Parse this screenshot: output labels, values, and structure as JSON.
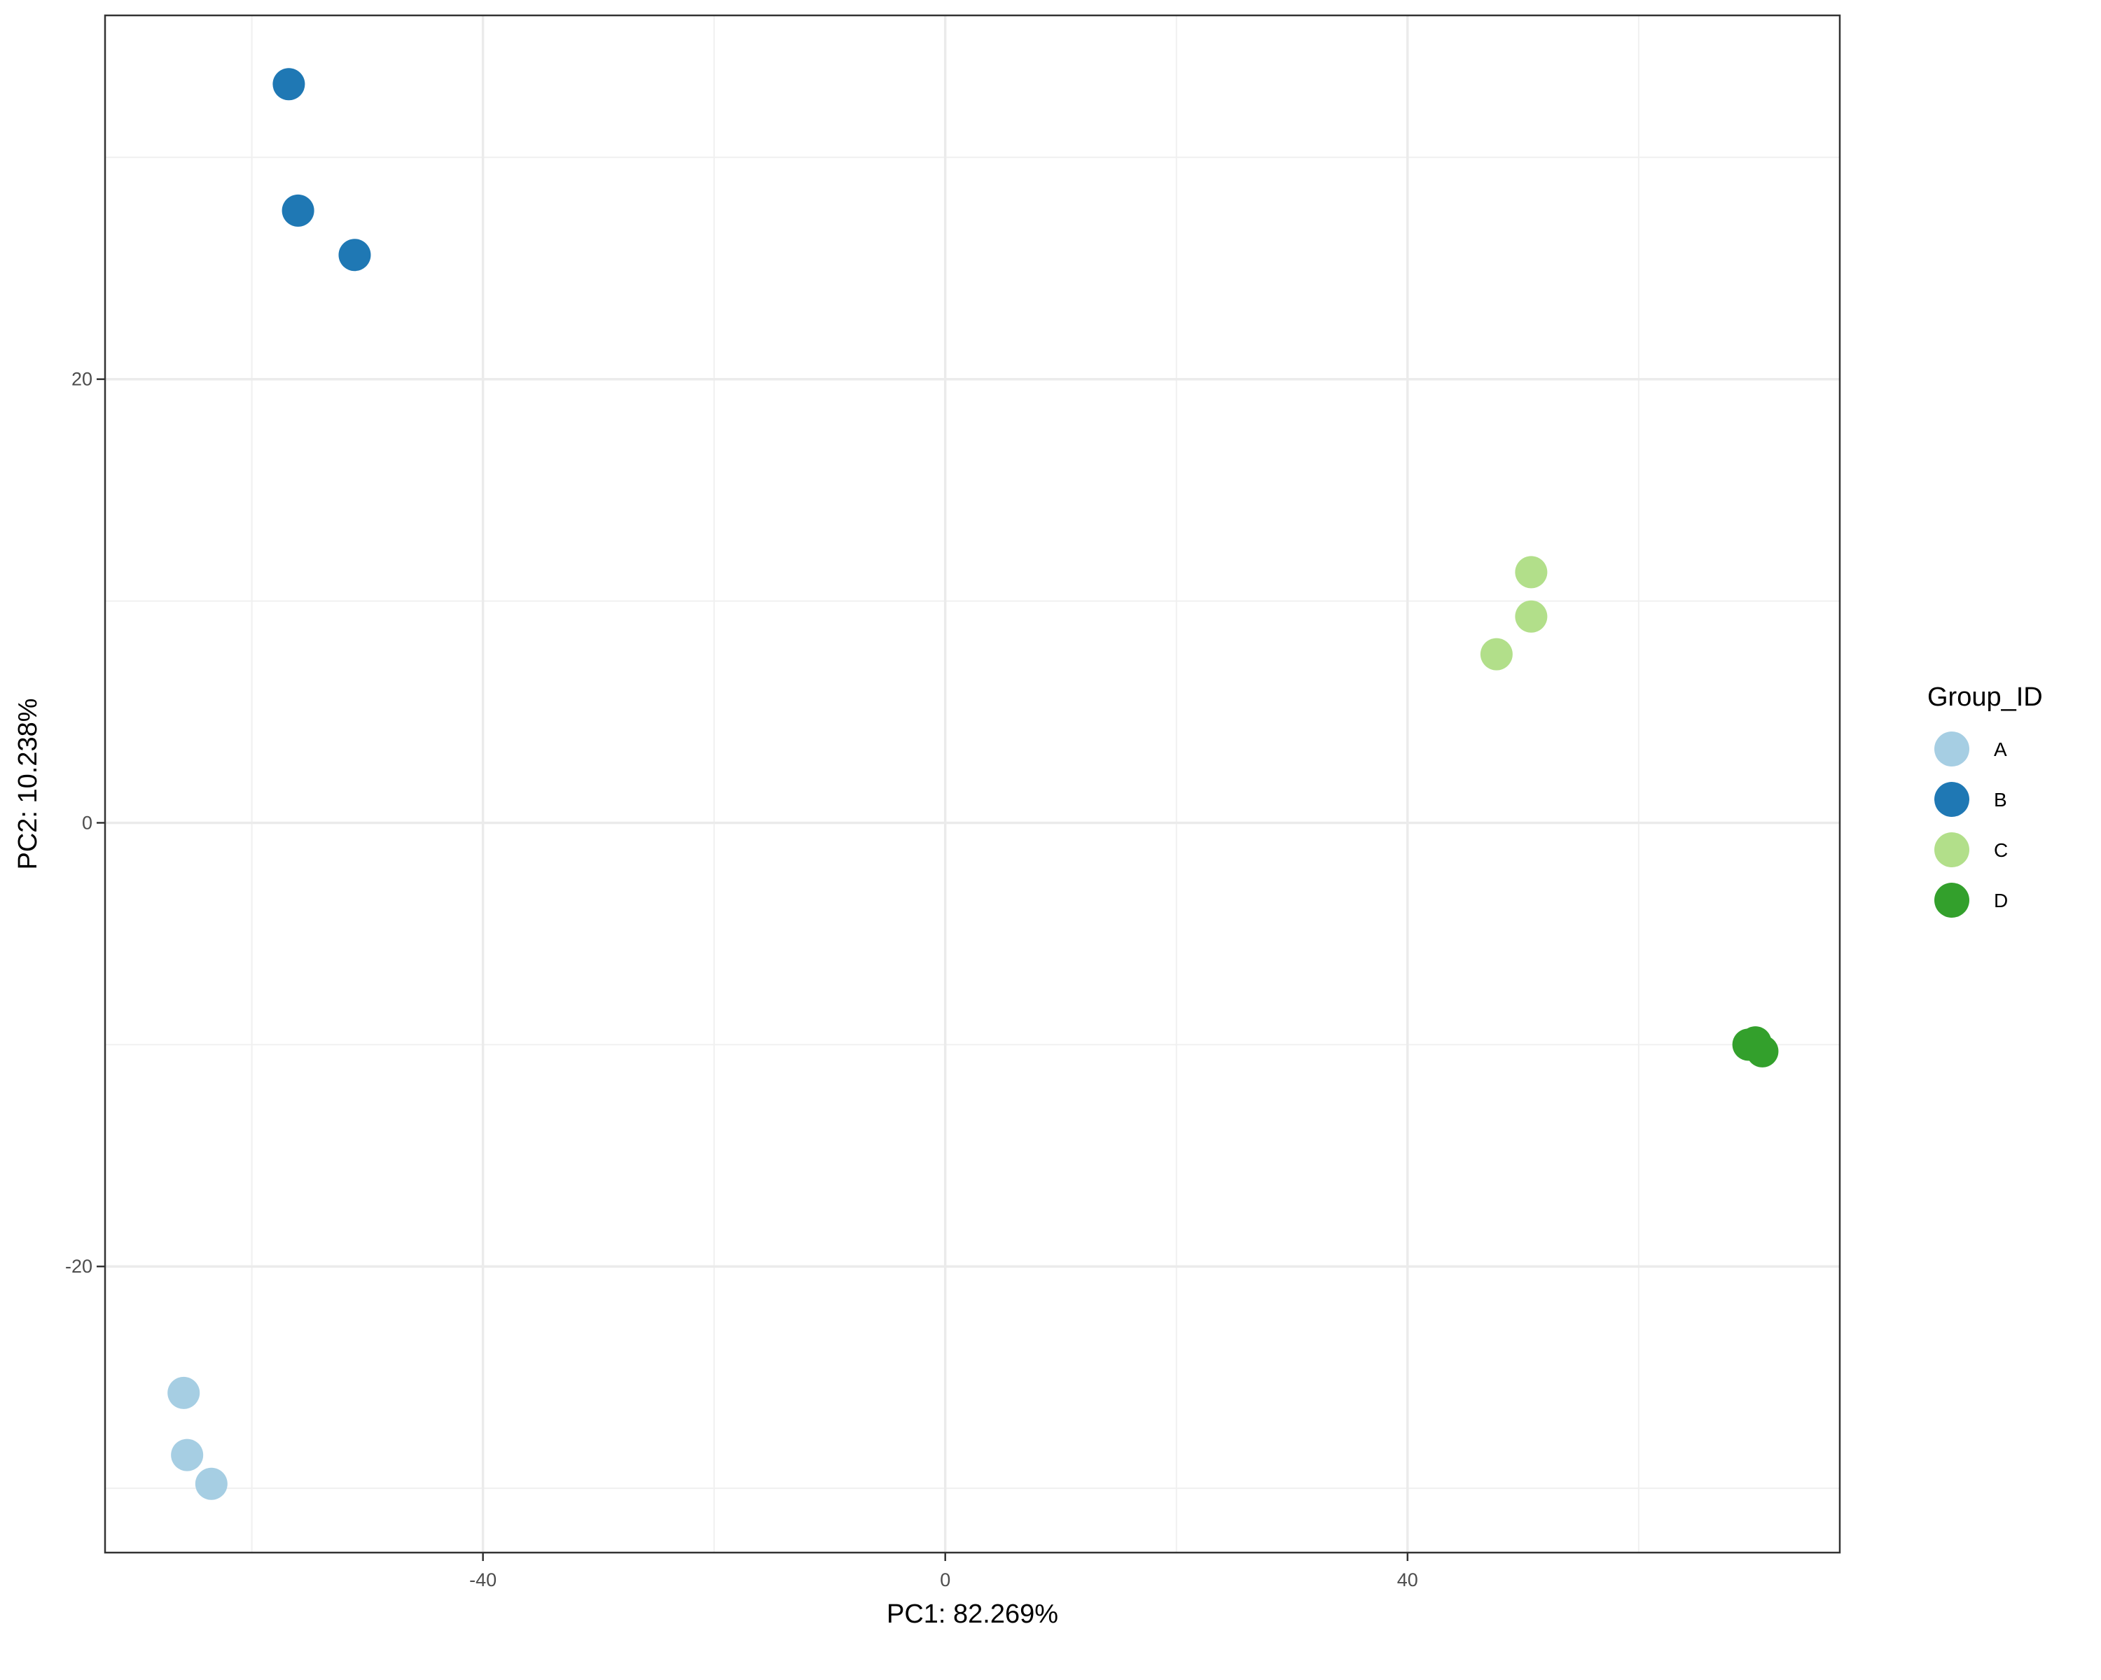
{
  "chart_data": {
    "type": "scatter",
    "title": "",
    "xlabel": "PC1: 82.269%",
    "ylabel": "PC2: 10.238%",
    "xlim": [
      -72.7,
      77.4
    ],
    "ylim": [
      -32.9,
      36.4
    ],
    "x_ticks": [
      -40,
      0,
      40
    ],
    "y_ticks": [
      -20,
      0,
      20
    ],
    "x_minor": [
      -60,
      -20,
      20,
      60
    ],
    "y_minor": [
      -30,
      -10,
      10,
      30
    ],
    "grid": true,
    "legend": {
      "title": "Group_ID",
      "placement": "right"
    },
    "series": [
      {
        "name": "A",
        "color": "#A6CEE3",
        "points": [
          [
            -65.9,
            -25.7
          ],
          [
            -65.6,
            -28.5
          ],
          [
            -63.5,
            -29.8
          ]
        ]
      },
      {
        "name": "B",
        "color": "#1F78B4",
        "points": [
          [
            -56.8,
            33.3
          ],
          [
            -56.0,
            27.6
          ],
          [
            -51.1,
            25.6
          ]
        ]
      },
      {
        "name": "C",
        "color": "#B2DF8A",
        "points": [
          [
            50.7,
            11.3
          ],
          [
            50.7,
            9.3
          ],
          [
            47.7,
            7.6
          ]
        ]
      },
      {
        "name": "D",
        "color": "#33A02C",
        "points": [
          [
            69.5,
            -10.0
          ],
          [
            70.1,
            -9.9
          ],
          [
            70.7,
            -10.3
          ]
        ]
      }
    ]
  }
}
